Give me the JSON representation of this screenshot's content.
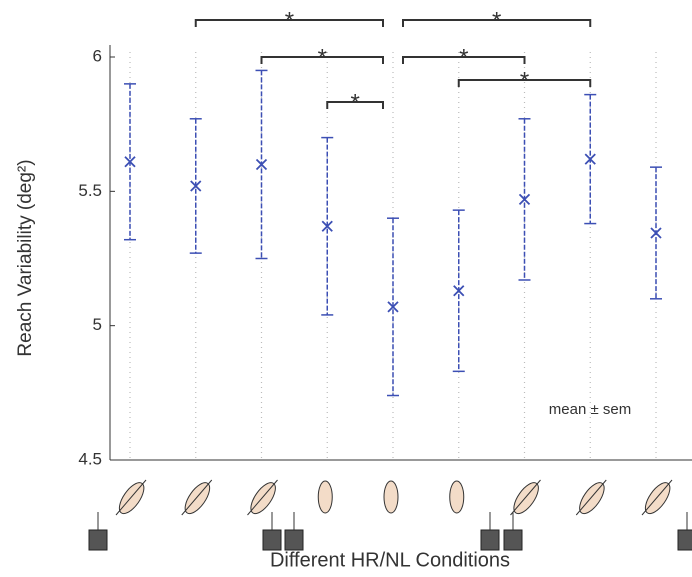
{
  "chart_data": {
    "type": "errorbar",
    "categories": [
      null,
      null,
      null,
      null,
      null,
      null,
      null,
      null,
      null
    ],
    "values": [
      5.61,
      5.52,
      5.6,
      5.37,
      5.07,
      5.13,
      5.47,
      5.62,
      5.345
    ],
    "errors": [
      0.29,
      0.25,
      0.35,
      0.33,
      0.33,
      0.3,
      0.3,
      0.24,
      0.245
    ],
    "color": "#3c4fb4",
    "ylim": [
      4.5,
      6
    ],
    "yticks": [
      {
        "value": 4.5,
        "label": "4.5"
      },
      5,
      {
        "value": 5.5,
        "label": "5.5"
      },
      6
    ],
    "y_label": "Reach Variability (deg²)",
    "x_label": "Different HR/NL Conditions",
    "annotation": "mean ± sem",
    "grid": true,
    "significance": [
      {
        "from": 1,
        "to": 4,
        "label": "*"
      },
      {
        "from": 4,
        "to": 7,
        "label": "*"
      },
      {
        "from": 2,
        "to": 4,
        "label": "*"
      },
      {
        "from": 4,
        "to": 6,
        "label": "*"
      },
      {
        "from": 5,
        "to": 7,
        "label": "*"
      },
      {
        "from": 3,
        "to": 4,
        "label": "*"
      }
    ]
  }
}
